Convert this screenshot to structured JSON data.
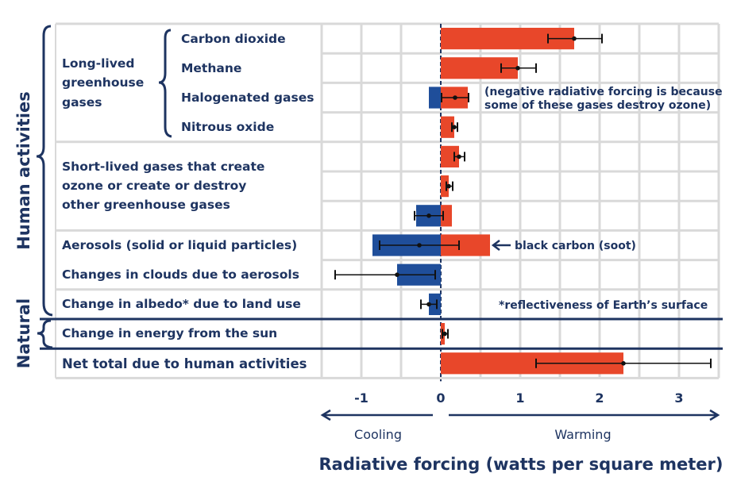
{
  "chart_data": {
    "type": "bar",
    "orientation": "horizontal",
    "xlabel": "Radiative forcing (watts per square meter)",
    "xlim": [
      -1.5,
      3.5
    ],
    "xticks": [
      "-1",
      "0",
      "1",
      "2",
      "3"
    ],
    "xtick_values": [
      -1,
      0,
      1,
      2,
      3
    ],
    "grid": true,
    "direction_labels": {
      "left": "Cooling",
      "right": "Warming"
    },
    "groups": {
      "human": "Human activities",
      "natural": "Natural",
      "long_lived": [
        "Long-lived",
        "greenhouse",
        "gases"
      ],
      "short_lived": [
        "Short-lived gases that create",
        "ozone or create or destroy",
        "other greenhouse gases"
      ]
    },
    "categories": [
      "Carbon dioxide",
      "Methane",
      "Halogenated gases",
      "Nitrous oxide",
      "",
      "",
      "",
      "Aerosols (solid or liquid particles)",
      "Changes in clouds due to aerosols",
      "Change in albedo* due to land use",
      "Change in energy from the sun",
      "Net total due to human activities"
    ],
    "series": [
      {
        "values_negative": [
          0,
          0,
          -0.15,
          0,
          0,
          0,
          -0.31,
          -0.86,
          -0.55,
          -0.15,
          0,
          0
        ],
        "values_positive": [
          1.68,
          0.97,
          0.34,
          0.17,
          0.23,
          0.1,
          0.14,
          0.62,
          0,
          0,
          0.05,
          2.3
        ],
        "best_estimate": [
          1.68,
          0.97,
          0.18,
          0.17,
          0.23,
          0.1,
          -0.15,
          -0.27,
          -0.55,
          -0.15,
          0.05,
          2.3
        ],
        "error_low": [
          1.35,
          0.76,
          0.01,
          0.14,
          0.17,
          0.07,
          -0.33,
          -0.77,
          -1.33,
          -0.25,
          0.02,
          1.2
        ],
        "error_high": [
          2.03,
          1.2,
          0.35,
          0.21,
          0.3,
          0.15,
          0.03,
          0.23,
          -0.07,
          -0.05,
          0.09,
          3.4
        ]
      }
    ],
    "annotations": {
      "halogenated_note": [
        "(negative radiative forcing is because",
        "some of these gases destroy ozone)"
      ],
      "black_carbon": "black carbon (soot)",
      "albedo_note": "*reflectiveness of Earth’s surface"
    },
    "colors": {
      "warming": "#e8472a",
      "cooling": "#1f4e9a",
      "text": "#1e3461",
      "grid": "#d9d9d9"
    }
  }
}
